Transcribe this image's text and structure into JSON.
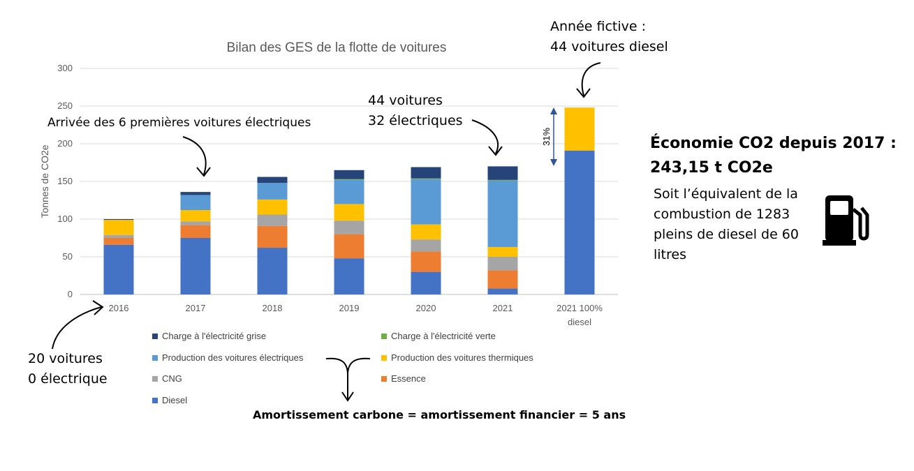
{
  "chart_data": {
    "type": "bar",
    "stacked": true,
    "title": "Bilan des GES de la flotte de voitures",
    "ylabel": "Tonnes de CO2e",
    "ylim": [
      0,
      300
    ],
    "yticks": [
      0,
      50,
      100,
      150,
      200,
      250,
      300
    ],
    "grid": true,
    "legend_position": "bottom",
    "categories": [
      "2016",
      "2017",
      "2018",
      "2019",
      "2020",
      "2021",
      "2021 100%\ndiesel"
    ],
    "series": [
      {
        "name": "Diesel",
        "color": "#4472C4",
        "values": [
          66,
          75,
          62,
          48,
          30,
          8,
          191
        ]
      },
      {
        "name": "Essence",
        "color": "#ED7D31",
        "values": [
          9,
          17,
          29,
          32,
          27,
          24,
          0
        ]
      },
      {
        "name": "CNG",
        "color": "#A5A5A5",
        "values": [
          4,
          5,
          15,
          18,
          16,
          18,
          0
        ]
      },
      {
        "name": "Production des voitures thermiques",
        "color": "#FFC000",
        "values": [
          20,
          15,
          20,
          22,
          20,
          13,
          57
        ]
      },
      {
        "name": "Production des voitures électriques",
        "color": "#5B9BD5",
        "values": [
          0,
          20,
          22,
          32,
          60,
          88,
          0
        ]
      },
      {
        "name": "Charge à l'électricité verte",
        "color": "#70AD47",
        "values": [
          0,
          0,
          0,
          1,
          1,
          1,
          0
        ]
      },
      {
        "name": "Charge à l'électricité grise",
        "color": "#264478",
        "values": [
          1,
          4,
          8,
          12,
          15,
          18,
          0
        ]
      }
    ],
    "annotations": {
      "bracket_label": "31%"
    }
  },
  "annotations": {
    "fleet_2016": "20 voitures\n0 électrique",
    "first_ev": "Arrivée des 6 premières voitures électriques",
    "fleet_2021": "44 voitures\n32 électriques",
    "fictive_year": "Année fictive :\n44 voitures diesel"
  },
  "legend_items": [
    {
      "label": "Charge à l'électricité grise",
      "color": "#264478"
    },
    {
      "label": "Charge à l'électricité verte",
      "color": "#70AD47"
    },
    {
      "label": "Production des voitures électriques",
      "color": "#5B9BD5"
    },
    {
      "label": "Production des voitures thermiques",
      "color": "#FFC000"
    },
    {
      "label": "CNG",
      "color": "#A5A5A5"
    },
    {
      "label": "Essence",
      "color": "#ED7D31"
    },
    {
      "label": "Diesel",
      "color": "#4472C4"
    }
  ],
  "savings": {
    "headline": "Économie CO2 depuis 2017 :\n243,15 t CO2e",
    "equivalent": "Soit l’équivalent de la\ncombustion de 1283\npleins de diesel de 60\nlitres"
  },
  "footer": "Amortissement carbone = amortissement financier = 5 ans",
  "icons": {
    "fuel": "fuel-pump-icon"
  }
}
